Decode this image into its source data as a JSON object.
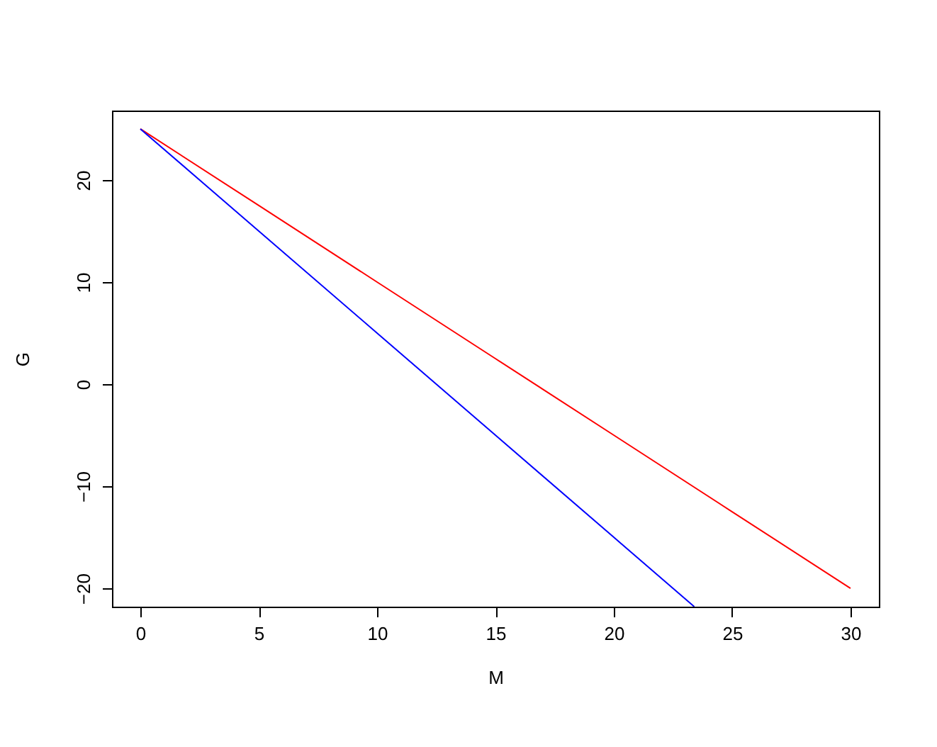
{
  "chart_data": {
    "type": "line",
    "xlabel": "M",
    "ylabel": "G",
    "series": [
      {
        "color": "#ff0000",
        "x": [
          0,
          5,
          10,
          15,
          20,
          25,
          30
        ],
        "values": [
          25,
          17.5,
          10,
          2.5,
          -5,
          -12.5,
          -20
        ]
      },
      {
        "color": "#0000ff",
        "x": [
          0,
          5,
          10,
          15,
          20,
          23.4
        ],
        "values": [
          25,
          15,
          5,
          -5,
          -15,
          -21.8
        ]
      }
    ],
    "xlim": [
      -1.2,
      31.2
    ],
    "xticks": [
      0,
      5,
      10,
      15,
      20,
      25,
      30
    ],
    "ylim": [
      -21.8,
      26.8
    ],
    "yticks": [
      -20,
      -10,
      0,
      10,
      20
    ],
    "grid": false,
    "legend": false
  }
}
